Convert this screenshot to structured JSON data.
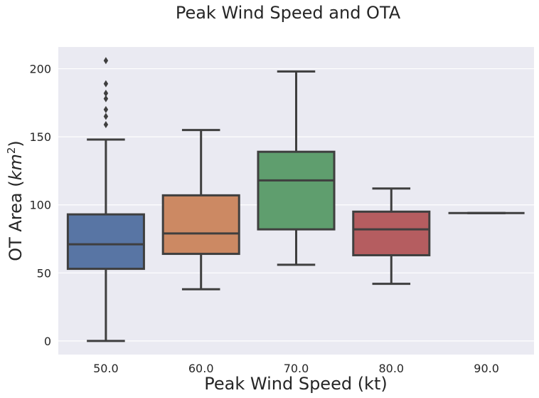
{
  "chart_data": {
    "type": "box",
    "title": "Peak Wind Speed and OTA",
    "xlabel": "Peak Wind Speed (kt)",
    "ylabel_main": "OT Area (",
    "ylabel_unit": "km",
    "ylabel_exp": "2",
    "ylabel_close": ")",
    "categories": [
      "50.0",
      "60.0",
      "70.0",
      "80.0",
      "90.0"
    ],
    "ylim": [
      -10,
      216
    ],
    "yticks": [
      0,
      50,
      100,
      150,
      200
    ],
    "ytick_labels": [
      "0",
      "50",
      "100",
      "150",
      "200"
    ],
    "grid": true,
    "background": "#EAEAF2",
    "colors": [
      "#5875A4",
      "#CC8963",
      "#5F9E6E",
      "#B55D60",
      "#857AAB"
    ],
    "boxes": [
      {
        "category": "50.0",
        "whisker_low": 0,
        "q1": 53,
        "median": 71,
        "q3": 93,
        "whisker_high": 148,
        "outliers": [
          159,
          165,
          170,
          178,
          182,
          189,
          206
        ]
      },
      {
        "category": "60.0",
        "whisker_low": 38,
        "q1": 64,
        "median": 79,
        "q3": 107,
        "whisker_high": 155,
        "outliers": []
      },
      {
        "category": "70.0",
        "whisker_low": 56,
        "q1": 82,
        "median": 118,
        "q3": 139,
        "whisker_high": 198,
        "outliers": []
      },
      {
        "category": "80.0",
        "whisker_low": 42,
        "q1": 63,
        "median": 82,
        "q3": 95,
        "whisker_high": 112,
        "outliers": []
      },
      {
        "category": "90.0",
        "whisker_low": 94,
        "q1": 94,
        "median": 94,
        "q3": 94,
        "whisker_high": 94,
        "outliers": []
      }
    ]
  }
}
